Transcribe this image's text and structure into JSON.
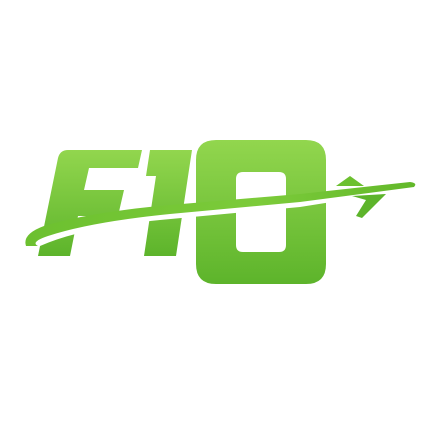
{
  "logo": {
    "wordmark": "F10",
    "icon": "airplane-swoosh-icon",
    "colors": {
      "green_light": "#92D64E",
      "green_mid": "#74C235",
      "green_dark": "#4FA523",
      "background": "#FFFFFF"
    }
  }
}
